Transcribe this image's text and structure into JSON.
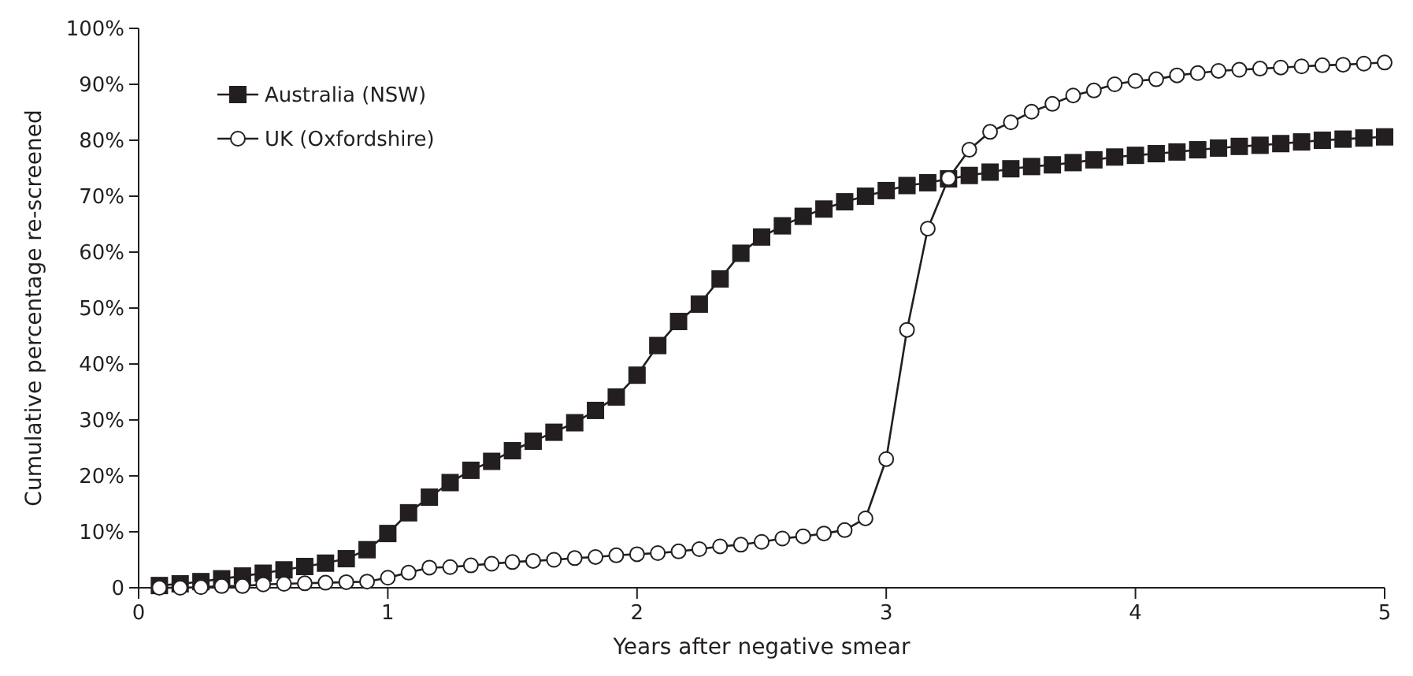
{
  "chart_data": {
    "type": "line",
    "xlabel": "Years after negative smear",
    "ylabel": "Cumulative percentage re-screened",
    "x": [
      0.0833,
      0.1667,
      0.25,
      0.3333,
      0.4167,
      0.5,
      0.5833,
      0.6667,
      0.75,
      0.8333,
      0.9167,
      1,
      1.0833,
      1.1667,
      1.25,
      1.3333,
      1.4167,
      1.5,
      1.5833,
      1.6667,
      1.75,
      1.8333,
      1.9167,
      2,
      2.0833,
      2.1667,
      2.25,
      2.3333,
      2.4167,
      2.5,
      2.5833,
      2.6667,
      2.75,
      2.8333,
      2.9167,
      3,
      3.0833,
      3.1667,
      3.25,
      3.3333,
      3.4167,
      3.5,
      3.5833,
      3.6667,
      3.75,
      3.8333,
      3.9167,
      4,
      4.0833,
      4.1667,
      4.25,
      4.3333,
      4.4167,
      4.5,
      4.5833,
      4.6667,
      4.75,
      4.8333,
      4.9167,
      5
    ],
    "series": [
      {
        "name": "Australia (NSW)",
        "color": "#231f20",
        "marker": "square",
        "values": [
          0.4,
          0.7,
          1.1,
          1.6,
          2.1,
          2.6,
          3.2,
          3.8,
          4.4,
          5.2,
          6.8,
          9.7,
          13.4,
          16.2,
          18.8,
          21,
          22.6,
          24.5,
          26.2,
          27.8,
          29.5,
          31.7,
          34.1,
          38,
          43.3,
          47.6,
          50.7,
          55.2,
          59.8,
          62.7,
          64.7,
          66.4,
          67.7,
          69,
          70,
          71,
          71.9,
          72.4,
          73.1,
          73.7,
          74.3,
          74.9,
          75.3,
          75.6,
          76,
          76.5,
          77,
          77.3,
          77.6,
          77.9,
          78.3,
          78.6,
          78.9,
          79.1,
          79.4,
          79.7,
          80,
          80.2,
          80.4,
          80.6
        ]
      },
      {
        "name": "UK (Oxfordshire)",
        "color": "#231f20",
        "marker": "circle",
        "values": [
          0,
          0,
          0.1,
          0.3,
          0.3,
          0.6,
          0.7,
          0.8,
          0.9,
          1,
          1.1,
          1.8,
          2.7,
          3.6,
          3.7,
          4,
          4.3,
          4.6,
          4.8,
          5,
          5.3,
          5.5,
          5.8,
          6,
          6.2,
          6.5,
          6.9,
          7.4,
          7.7,
          8.2,
          8.8,
          9.2,
          9.7,
          10.3,
          12.4,
          23,
          46.1,
          64.2,
          73.2,
          78.3,
          81.5,
          83.2,
          85.1,
          86.5,
          88,
          88.9,
          90,
          90.6,
          90.9,
          91.6,
          92,
          92.4,
          92.6,
          92.8,
          93,
          93.2,
          93.4,
          93.5,
          93.7,
          93.9
        ]
      }
    ],
    "xlim": [
      0,
      5
    ],
    "xticks": [
      0,
      1,
      2,
      3,
      4,
      5
    ],
    "ylim": [
      0,
      100
    ],
    "yticks": [
      0,
      {
        "value": 10,
        "label": "10%"
      },
      {
        "value": 20,
        "label": "20%"
      },
      {
        "value": 30,
        "label": "30%"
      },
      {
        "value": 40,
        "label": "40%"
      },
      {
        "value": 50,
        "label": "50%"
      },
      {
        "value": 60,
        "label": "60%"
      },
      {
        "value": 70,
        "label": "70%"
      },
      {
        "value": 80,
        "label": "80%"
      },
      {
        "value": 90,
        "label": "90%"
      },
      {
        "value": 100,
        "label": "100%"
      }
    ],
    "grid": false,
    "legend": "top left",
    "line_style": "solid"
  }
}
